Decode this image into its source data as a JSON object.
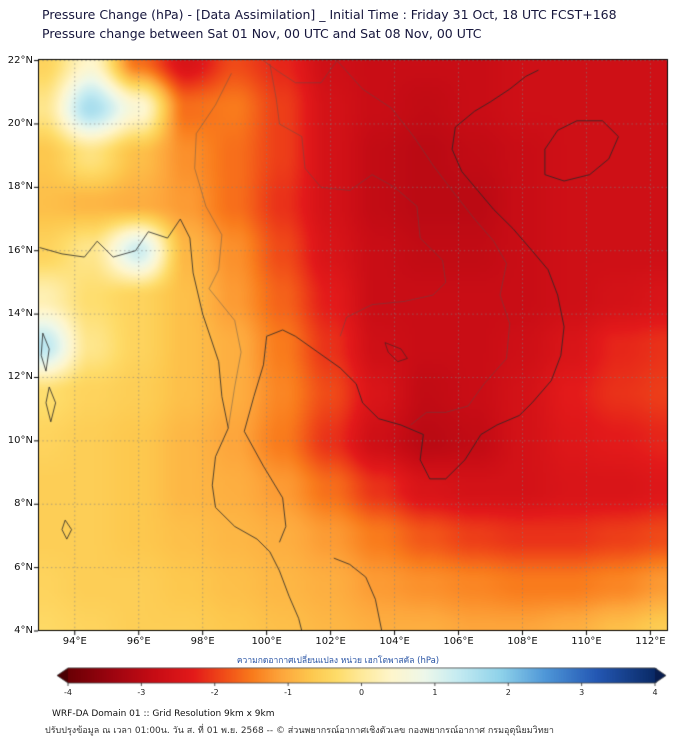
{
  "chart_data": {
    "type": "heatmap",
    "title": "Pressure Change (hPa) - [Data Assimilation] _ Initial Time : Friday 31 Oct, 18 UTC FCST+168",
    "subtitle": "Pressure change between Sat 01 Nov, 00 UTC and Sat 08 Nov, 00 UTC",
    "x_axis": {
      "range": [
        92.85,
        112.55
      ],
      "tick_values": [
        94,
        96,
        98,
        100,
        102,
        104,
        106,
        108,
        110,
        112
      ],
      "tick_labels": [
        "94°E",
        "96°E",
        "98°E",
        "100°E",
        "102°E",
        "104°E",
        "106°E",
        "108°E",
        "110°E",
        "112°E"
      ]
    },
    "y_axis": {
      "range": [
        4,
        22.05
      ],
      "tick_values": [
        4,
        6,
        8,
        10,
        12,
        14,
        16,
        18,
        20,
        22
      ],
      "tick_labels": [
        "4°N",
        "6°N",
        "8°N",
        "10°N",
        "12°N",
        "14°N",
        "16°N",
        "18°N",
        "20°N",
        "22°N"
      ]
    },
    "grid": {
      "lons": [
        93,
        94.5,
        96,
        97.5,
        99,
        100.5,
        102,
        103.5,
        105,
        106.5,
        108,
        109.5,
        111,
        112.5
      ],
      "lats": [
        22,
        20.5,
        19,
        17.5,
        16,
        14.5,
        13,
        11.5,
        10,
        8.5,
        7,
        5.5,
        4
      ],
      "values_hpa": [
        [
          -0.5,
          0.4,
          -1.6,
          -2.5,
          -1.9,
          -2.2,
          -2.7,
          -2.8,
          -2.8,
          -2.8,
          -2.7,
          -2.7,
          -2.7,
          -2.7
        ],
        [
          -0.1,
          1.6,
          0.5,
          -1.6,
          -1.5,
          -2.0,
          -2.6,
          -2.8,
          -2.9,
          -2.8,
          -2.7,
          -2.7,
          -2.7,
          -2.7
        ],
        [
          -0.7,
          -0.2,
          -0.8,
          -1.3,
          -1.6,
          -2.0,
          -2.6,
          -2.9,
          -3.0,
          -2.9,
          -2.8,
          -2.7,
          -2.7,
          -2.7
        ],
        [
          -0.8,
          -0.9,
          -1.0,
          -1.2,
          -1.6,
          -2.1,
          -2.6,
          -2.9,
          -3.0,
          -3.0,
          -2.8,
          -2.7,
          -2.7,
          -2.7
        ],
        [
          -0.5,
          -0.1,
          1.2,
          -0.9,
          -1.3,
          -1.9,
          -2.5,
          -2.8,
          -2.9,
          -2.9,
          -2.8,
          -2.7,
          -2.7,
          -2.7
        ],
        [
          0.2,
          -0.3,
          -0.5,
          -0.8,
          -1.2,
          -1.7,
          -2.3,
          -2.8,
          -2.8,
          -2.8,
          -2.8,
          -2.7,
          -2.6,
          -2.5
        ],
        [
          1.4,
          -0.1,
          -0.5,
          -0.8,
          -1.0,
          -1.5,
          -2.1,
          -2.7,
          -2.8,
          -2.8,
          -2.7,
          -2.5,
          -2.2,
          -2.1
        ],
        [
          -0.3,
          -0.5,
          -0.6,
          -0.8,
          -1.0,
          -1.4,
          -1.9,
          -2.5,
          -2.9,
          -2.8,
          -2.6,
          -2.3,
          -2.1,
          -2.0
        ],
        [
          -0.5,
          -0.6,
          -0.7,
          -0.9,
          -1.1,
          -1.5,
          -2.1,
          -2.7,
          -3.0,
          -2.9,
          -2.6,
          -2.4,
          -2.3,
          -2.2
        ],
        [
          -0.6,
          -0.6,
          -0.7,
          -0.9,
          -1.0,
          -1.2,
          -1.6,
          -2.1,
          -2.5,
          -2.6,
          -2.6,
          -2.5,
          -2.5,
          -2.4
        ],
        [
          -0.6,
          -0.6,
          -0.7,
          -0.8,
          -0.9,
          -1.0,
          -1.2,
          -1.5,
          -1.8,
          -2.0,
          -2.1,
          -2.1,
          -2.0,
          -1.9
        ],
        [
          -0.5,
          -0.6,
          -0.6,
          -0.7,
          -0.8,
          -0.9,
          -1.0,
          -1.2,
          -1.3,
          -1.4,
          -1.5,
          -1.5,
          -1.4,
          -1.2
        ],
        [
          -0.4,
          -0.5,
          -0.6,
          -0.6,
          -0.7,
          -0.8,
          -0.9,
          -1.0,
          -1.0,
          -1.1,
          -1.1,
          -1.0,
          -0.8,
          -0.6
        ]
      ]
    },
    "colormap": [
      [
        -4.0,
        "#6b0005"
      ],
      [
        -3.4,
        "#9e0410"
      ],
      [
        -2.8,
        "#c90d15"
      ],
      [
        -2.3,
        "#e31a1a"
      ],
      [
        -1.9,
        "#f04a18"
      ],
      [
        -1.5,
        "#f97b1c"
      ],
      [
        -1.1,
        "#fda63c"
      ],
      [
        -0.7,
        "#fdc84e"
      ],
      [
        -0.35,
        "#fedc69"
      ],
      [
        0.0,
        "#feea9b"
      ],
      [
        0.4,
        "#fff6cc"
      ],
      [
        0.85,
        "#eef8ea"
      ],
      [
        1.3,
        "#c6ecf2"
      ],
      [
        1.9,
        "#8ed2ea"
      ],
      [
        2.5,
        "#4f97d8"
      ],
      [
        3.2,
        "#2458b4"
      ],
      [
        4.0,
        "#0a2a66"
      ]
    ],
    "colorbar": {
      "label": "ความกดอากาศเปลี่ยนแปลง หน่วย เฮกโตพาสคัล (hPa)",
      "range": [
        -4,
        4
      ],
      "tick_values": [
        -4,
        -3,
        -2,
        -1,
        0,
        1,
        2,
        3,
        4
      ],
      "tick_labels": [
        "-4",
        "-3",
        "-2",
        "-1",
        "0",
        "1",
        "2",
        "3",
        "4"
      ],
      "under_color": "#4a0003",
      "over_color": "#081d4e"
    }
  },
  "map_overlays": {
    "coastlines": [
      [
        [
          92.9,
          16.1
        ],
        [
          93.6,
          15.9
        ],
        [
          94.3,
          15.8
        ],
        [
          94.7,
          16.3
        ],
        [
          95.2,
          15.8
        ],
        [
          95.9,
          16.0
        ],
        [
          96.3,
          16.6
        ],
        [
          96.9,
          16.4
        ],
        [
          97.3,
          17.0
        ],
        [
          97.6,
          16.4
        ],
        [
          97.7,
          15.3
        ],
        [
          98.0,
          14.0
        ],
        [
          98.5,
          12.5
        ],
        [
          98.6,
          11.4
        ],
        [
          98.8,
          10.4
        ],
        [
          98.4,
          9.5
        ],
        [
          98.3,
          8.6
        ],
        [
          98.4,
          7.9
        ],
        [
          99.0,
          7.3
        ],
        [
          99.7,
          6.9
        ],
        [
          100.1,
          6.5
        ],
        [
          100.4,
          5.9
        ],
        [
          100.7,
          5.1
        ],
        [
          101.0,
          4.4
        ],
        [
          101.1,
          4.0
        ]
      ],
      [
        [
          103.6,
          4.0
        ],
        [
          103.4,
          5.0
        ],
        [
          103.1,
          5.7
        ],
        [
          102.6,
          6.1
        ],
        [
          102.1,
          6.3
        ]
      ],
      [
        [
          100.4,
          6.8
        ],
        [
          100.6,
          7.3
        ],
        [
          100.5,
          8.2
        ],
        [
          99.9,
          9.2
        ],
        [
          99.3,
          10.3
        ],
        [
          99.6,
          11.4
        ],
        [
          99.9,
          12.4
        ],
        [
          100.0,
          13.3
        ],
        [
          100.5,
          13.5
        ],
        [
          100.9,
          13.3
        ],
        [
          101.6,
          12.8
        ],
        [
          102.3,
          12.3
        ],
        [
          102.8,
          11.8
        ],
        [
          103.0,
          11.2
        ],
        [
          103.5,
          10.7
        ],
        [
          104.2,
          10.5
        ],
        [
          104.9,
          10.2
        ],
        [
          104.8,
          9.4
        ],
        [
          105.1,
          8.8
        ],
        [
          105.6,
          8.8
        ],
        [
          106.2,
          9.4
        ],
        [
          106.7,
          10.2
        ],
        [
          107.2,
          10.5
        ],
        [
          107.9,
          10.8
        ],
        [
          108.3,
          11.2
        ],
        [
          108.9,
          11.9
        ],
        [
          109.2,
          12.7
        ],
        [
          109.3,
          13.6
        ],
        [
          109.1,
          14.6
        ],
        [
          108.8,
          15.4
        ],
        [
          108.3,
          16.0
        ],
        [
          107.7,
          16.7
        ],
        [
          107.1,
          17.3
        ],
        [
          106.6,
          17.9
        ],
        [
          106.1,
          18.5
        ],
        [
          105.8,
          19.2
        ],
        [
          105.9,
          19.9
        ],
        [
          106.5,
          20.4
        ],
        [
          107.0,
          20.7
        ],
        [
          107.6,
          21.1
        ],
        [
          108.1,
          21.5
        ],
        [
          108.5,
          21.7
        ]
      ],
      [
        [
          108.7,
          18.4
        ],
        [
          109.3,
          18.2
        ],
        [
          110.1,
          18.4
        ],
        [
          110.7,
          18.9
        ],
        [
          111.0,
          19.6
        ],
        [
          110.5,
          20.1
        ],
        [
          109.7,
          20.1
        ],
        [
          109.1,
          19.8
        ],
        [
          108.7,
          19.2
        ],
        [
          108.7,
          18.4
        ]
      ],
      [
        [
          93.0,
          13.4
        ],
        [
          93.2,
          12.9
        ],
        [
          93.1,
          12.2
        ],
        [
          92.95,
          12.7
        ],
        [
          93.0,
          13.4
        ]
      ],
      [
        [
          93.2,
          11.7
        ],
        [
          93.4,
          11.2
        ],
        [
          93.25,
          10.6
        ],
        [
          93.1,
          11.2
        ],
        [
          93.2,
          11.7
        ]
      ],
      [
        [
          93.7,
          7.5
        ],
        [
          93.9,
          7.2
        ],
        [
          93.75,
          6.9
        ],
        [
          93.6,
          7.2
        ],
        [
          93.7,
          7.5
        ]
      ]
    ],
    "borders": [
      [
        [
          98.9,
          21.6
        ],
        [
          98.4,
          20.6
        ],
        [
          97.8,
          19.7
        ],
        [
          97.75,
          18.6
        ],
        [
          98.1,
          17.4
        ],
        [
          98.6,
          16.5
        ],
        [
          98.5,
          15.4
        ],
        [
          98.2,
          14.8
        ],
        [
          99.0,
          13.8
        ],
        [
          99.2,
          12.8
        ],
        [
          99.0,
          11.7
        ],
        [
          98.8,
          10.4
        ]
      ],
      [
        [
          100.1,
          21.9
        ],
        [
          100.3,
          20.8
        ],
        [
          100.4,
          20.0
        ],
        [
          101.1,
          19.6
        ],
        [
          101.2,
          18.6
        ],
        [
          101.7,
          18.0
        ],
        [
          102.6,
          17.9
        ],
        [
          103.3,
          18.4
        ],
        [
          104.0,
          18.0
        ],
        [
          104.7,
          17.4
        ],
        [
          104.8,
          16.4
        ],
        [
          105.5,
          15.7
        ],
        [
          105.6,
          15.0
        ],
        [
          105.2,
          14.6
        ],
        [
          104.3,
          14.4
        ],
        [
          103.3,
          14.3
        ],
        [
          102.5,
          13.9
        ],
        [
          102.3,
          13.3
        ]
      ],
      [
        [
          102.2,
          22.0
        ],
        [
          103.0,
          21.1
        ],
        [
          103.9,
          20.5
        ],
        [
          104.6,
          19.6
        ],
        [
          105.2,
          18.7
        ],
        [
          105.8,
          17.9
        ],
        [
          106.5,
          17.0
        ],
        [
          107.1,
          16.3
        ],
        [
          107.5,
          15.6
        ],
        [
          107.3,
          14.6
        ],
        [
          107.6,
          13.7
        ],
        [
          107.5,
          12.6
        ],
        [
          106.8,
          11.8
        ],
        [
          106.3,
          11.1
        ],
        [
          105.6,
          10.9
        ],
        [
          105.0,
          10.9
        ],
        [
          104.5,
          10.5
        ]
      ],
      [
        [
          102.2,
          22.0
        ],
        [
          101.7,
          21.3
        ],
        [
          100.9,
          21.3
        ],
        [
          100.3,
          21.7
        ],
        [
          99.9,
          22.0
        ]
      ]
    ],
    "lakes": [
      [
        [
          103.7,
          13.1
        ],
        [
          104.2,
          12.9
        ],
        [
          104.4,
          12.6
        ],
        [
          104.1,
          12.5
        ],
        [
          103.8,
          12.8
        ],
        [
          103.7,
          13.1
        ]
      ]
    ]
  },
  "footer": {
    "line1": "WRF-DA Domain 01 :: Grid Resolution 9km x 9km",
    "line2": "ปรับปรุงข้อมูล ณ เวลา 01:00น. วัน ส. ที่ 01 พ.ย. 2568 -- © ส่วนพยากรณ์อากาศเชิงตัวเลข กองพยากรณ์อากาศ กรมอุตุนิยมวิทยา"
  }
}
